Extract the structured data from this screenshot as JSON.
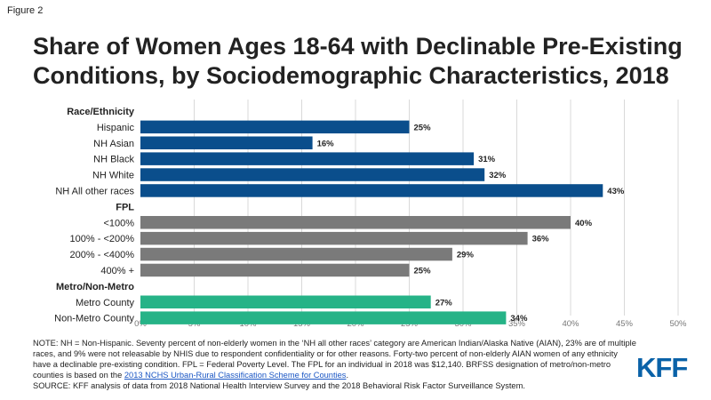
{
  "figure_label": "Figure 2",
  "title_lines": [
    "Share of Women Ages 18-64 with Declinable Pre-Existing",
    "Conditions, by Sociodemographic Characteristics, 2018"
  ],
  "colors": {
    "race": "#0a4e8c",
    "fpl": "#7a7a7a",
    "metro": "#26b387",
    "grid": "#d9d9d9",
    "text": "#222222"
  },
  "chart_data": {
    "type": "bar",
    "orientation": "horizontal",
    "xlim": [
      0,
      50
    ],
    "xticks": [
      "0%",
      "5%",
      "10%",
      "15%",
      "20%",
      "25%",
      "30%",
      "35%",
      "40%",
      "45%",
      "50%"
    ],
    "grid": true,
    "groups": [
      {
        "header": "Race/Ethnicity",
        "color_key": "race",
        "categories": [
          "Hispanic",
          "NH Asian",
          "NH Black",
          "NH White",
          "NH All other races"
        ],
        "values": [
          25,
          16,
          31,
          32,
          43
        ],
        "labels": [
          "25%",
          "16%",
          "31%",
          "32%",
          "43%"
        ]
      },
      {
        "header": "FPL",
        "color_key": "fpl",
        "categories": [
          "<100%",
          "100% - <200%",
          "200% - <400%",
          "400% +"
        ],
        "values": [
          40,
          36,
          29,
          25
        ],
        "labels": [
          "40%",
          "36%",
          "29%",
          "25%"
        ]
      },
      {
        "header": "Metro/Non-Metro",
        "color_key": "metro",
        "categories": [
          "Metro County",
          "Non-Metro County"
        ],
        "values": [
          27,
          34
        ],
        "labels": [
          "27%",
          "34%"
        ]
      }
    ]
  },
  "note": {
    "main": "NOTE: NH = Non-Hispanic. Seventy percent of non-elderly women in the ‘NH all other races’ category are American Indian/Alaska Native (AIAN), 23% are of multiple races, and 9% were not releasable by NHIS due to respondent confidentiality or for other reasons. Forty-two percent of non-elderly AIAN women of any ethnicity have a declinable pre-existing condition. FPL = Federal Poverty Level. The FPL for an individual in 2018 was $12,140. BRFSS designation of metro/non-metro counties is based on the",
    "link_text": "2013 NCHS Urban-Rural Classification Scheme for Counties",
    "link_end": ".",
    "source": "SOURCE: KFF analysis of data from 2018 National Health Interview Survey and the 2018 Behavioral Risk Factor Surveillance System."
  },
  "logo_text": "KFF"
}
